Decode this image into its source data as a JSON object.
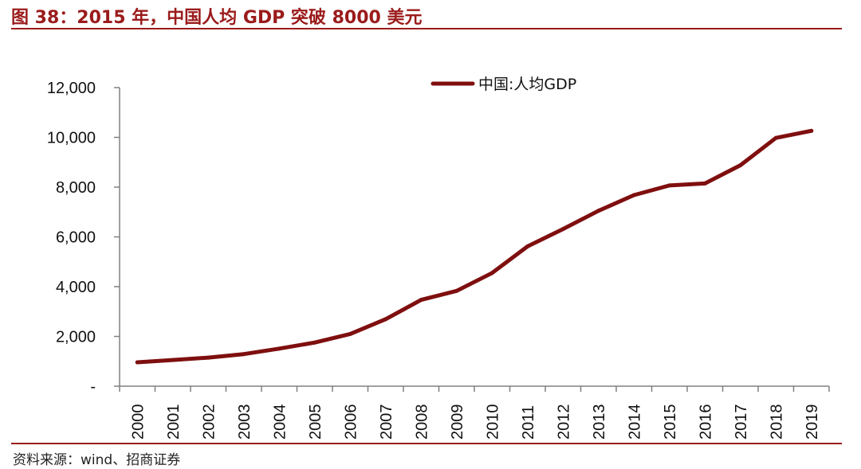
{
  "figure": {
    "title": "图 38：2015 年，中国人均 GDP 突破 8000 美元",
    "source": "资料来源：wind、招商证券"
  },
  "chart_data": {
    "type": "line",
    "title": "图 38：2015 年，中国人均 GDP 突破 8000 美元",
    "xlabel": "",
    "ylabel": "",
    "x": [
      "2000",
      "2001",
      "2002",
      "2003",
      "2004",
      "2005",
      "2006",
      "2007",
      "2008",
      "2009",
      "2010",
      "2011",
      "2012",
      "2013",
      "2014",
      "2015",
      "2016",
      "2017",
      "2018",
      "2019"
    ],
    "series": [
      {
        "name": "中国:人均GDP",
        "color": "#7f0f0f",
        "values": [
          959,
          1053,
          1149,
          1289,
          1509,
          1753,
          2099,
          2694,
          3468,
          3832,
          4550,
          5618,
          6317,
          7051,
          7679,
          8067,
          8148,
          8879,
          9977,
          10262
        ]
      }
    ],
    "ylim": [
      0,
      12000
    ],
    "yticks": [
      0,
      2000,
      4000,
      6000,
      8000,
      10000,
      12000
    ],
    "ytick_labels": [
      "-",
      "2,000",
      "4,000",
      "6,000",
      "8,000",
      "10,000",
      "12,000"
    ],
    "grid": false,
    "legend_position": "top-center"
  }
}
